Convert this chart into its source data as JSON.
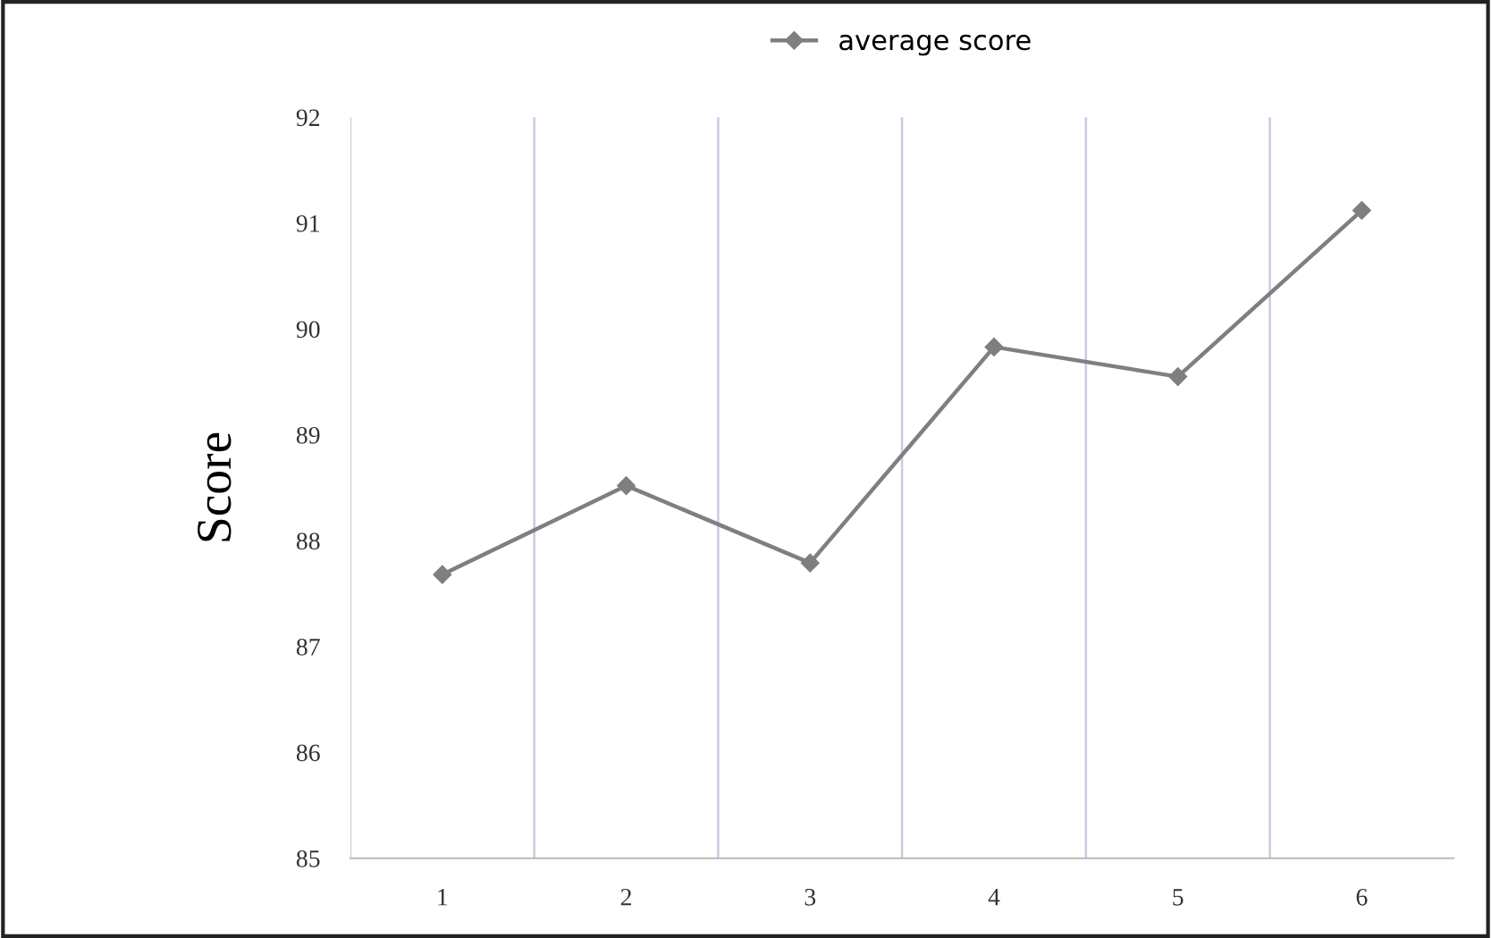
{
  "chart_data": {
    "type": "line",
    "ylabel": "Score",
    "categories": [
      "1",
      "2",
      "3",
      "4",
      "5",
      "6"
    ],
    "series": [
      {
        "name": "average score",
        "color": "#7f7f7f",
        "values": [
          87.68,
          88.52,
          87.79,
          89.83,
          89.55,
          91.12
        ]
      }
    ],
    "ylim": [
      85,
      92
    ],
    "yticks": [
      85,
      86,
      87,
      88,
      89,
      90,
      91,
      92
    ],
    "grid": "x",
    "legend": "top",
    "marker": "diamond",
    "line_style": "solid"
  }
}
